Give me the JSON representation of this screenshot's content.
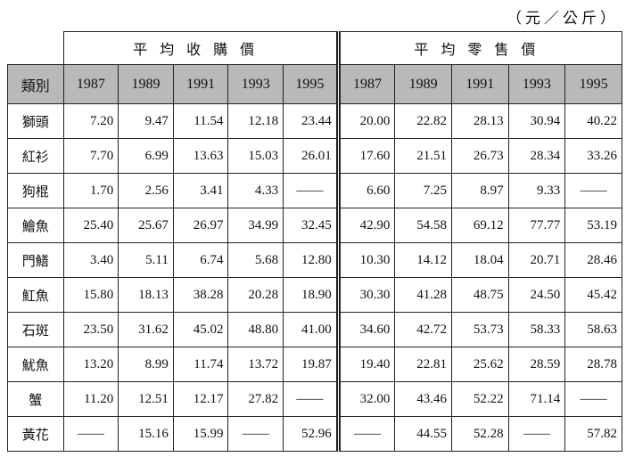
{
  "unit": "（元／公斤）",
  "table": {
    "corner": "類別",
    "groups": [
      "平均收購價",
      "平均零售價"
    ],
    "years": [
      "1987",
      "1989",
      "1991",
      "1993",
      "1995",
      "1987",
      "1989",
      "1991",
      "1993",
      "1995"
    ],
    "rows": [
      [
        "獅頭",
        "7.20",
        "9.47",
        "11.54",
        "12.18",
        "23.44",
        "20.00",
        "22.82",
        "28.13",
        "30.94",
        "40.22"
      ],
      [
        "紅衫",
        "7.70",
        "6.99",
        "13.63",
        "15.03",
        "26.01",
        "17.60",
        "21.51",
        "26.73",
        "28.34",
        "33.26"
      ],
      [
        "狗棍",
        "1.70",
        "2.56",
        "3.41",
        "4.33",
        "——",
        "6.60",
        "7.25",
        "8.97",
        "9.33",
        "——"
      ],
      [
        "鱠魚",
        "25.40",
        "25.67",
        "26.97",
        "34.99",
        "32.45",
        "42.90",
        "54.58",
        "69.12",
        "77.77",
        "53.19"
      ],
      [
        "門鱔",
        "3.40",
        "5.11",
        "6.74",
        "5.68",
        "12.80",
        "10.30",
        "14.12",
        "18.04",
        "20.71",
        "28.46"
      ],
      [
        "魟魚",
        "15.80",
        "18.13",
        "38.28",
        "20.28",
        "18.90",
        "30.30",
        "41.28",
        "48.75",
        "24.50",
        "45.42"
      ],
      [
        "石斑",
        "23.50",
        "31.62",
        "45.02",
        "48.80",
        "41.00",
        "34.60",
        "42.72",
        "53.73",
        "58.33",
        "58.63"
      ],
      [
        "魷魚",
        "13.20",
        "8.99",
        "11.74",
        "13.72",
        "19.87",
        "19.40",
        "22.81",
        "25.62",
        "28.59",
        "28.78"
      ],
      [
        "蟹",
        "11.20",
        "12.51",
        "12.17",
        "27.82",
        "——",
        "32.00",
        "43.46",
        "52.22",
        "71.14",
        "——"
      ],
      [
        "黃花",
        "——",
        "15.16",
        "15.99",
        "——",
        "52.96",
        "——",
        "44.55",
        "52.28",
        "——",
        "57.82"
      ]
    ]
  }
}
